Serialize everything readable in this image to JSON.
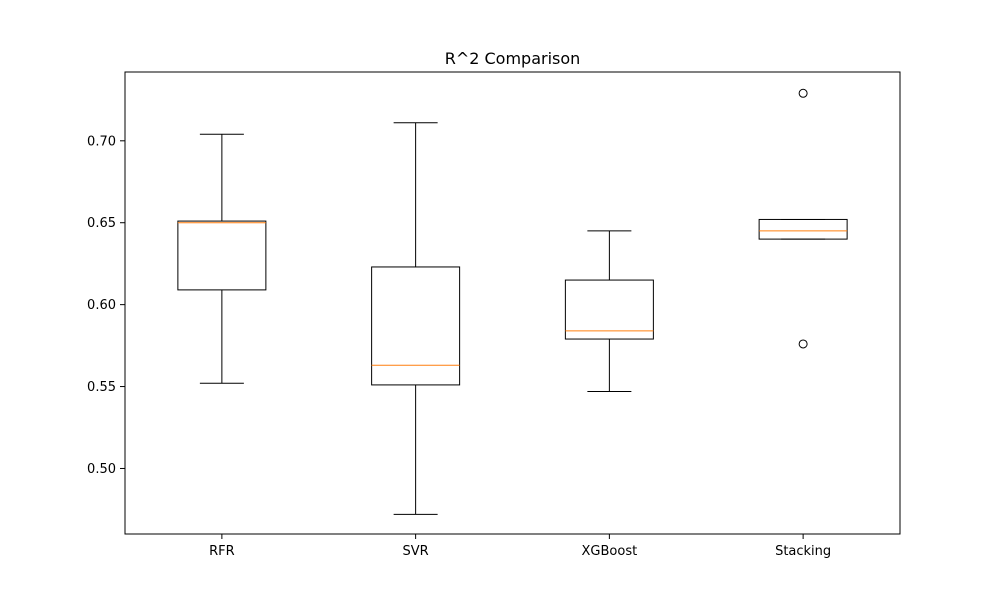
{
  "chart_data": {
    "type": "box",
    "title": "R^2 Comparison",
    "xlabel": "",
    "ylabel": "",
    "ylim": [
      0.46,
      0.742
    ],
    "yticks": [
      0.5,
      0.55,
      0.6,
      0.65,
      0.7
    ],
    "ytick_labels": [
      "0.50",
      "0.55",
      "0.60",
      "0.65",
      "0.70"
    ],
    "grid": false,
    "colors": {
      "box": "#000000",
      "median": "#ff7f0e",
      "background": "#ffffff"
    },
    "categories": [
      "RFR",
      "SVR",
      "XGBoost",
      "Stacking"
    ],
    "boxes": [
      {
        "label": "RFR",
        "whisker_low": 0.552,
        "q1": 0.609,
        "median": 0.65,
        "q3": 0.651,
        "whisker_high": 0.704,
        "outliers": []
      },
      {
        "label": "SVR",
        "whisker_low": 0.472,
        "q1": 0.551,
        "median": 0.563,
        "q3": 0.623,
        "whisker_high": 0.711,
        "outliers": []
      },
      {
        "label": "XGBoost",
        "whisker_low": 0.547,
        "q1": 0.579,
        "median": 0.584,
        "q3": 0.615,
        "whisker_high": 0.645,
        "outliers": []
      },
      {
        "label": "Stacking",
        "whisker_low": 0.64,
        "q1": 0.64,
        "median": 0.645,
        "q3": 0.652,
        "whisker_high": 0.652,
        "outliers": [
          0.576,
          0.729
        ]
      }
    ]
  }
}
